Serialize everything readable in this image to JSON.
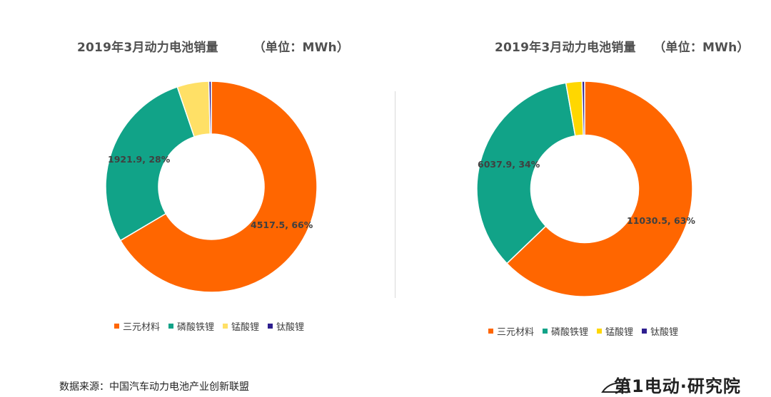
{
  "chart_data": [
    {
      "type": "pie",
      "title": "2019年3月动力电池销量        （单位：MWh）",
      "donut": true,
      "categories": [
        "三元材料",
        "磷酸铁锂",
        "锰酸锂",
        "钛酸锂"
      ],
      "values": [
        4517.5,
        1921.9,
        330,
        25
      ],
      "data_labels": [
        "4517.5, 66%",
        "1921.9, 28%",
        "",
        ""
      ],
      "colors": [
        "#FF6600",
        "#11A388",
        "#FFE066",
        "#2E1F8F"
      ],
      "legend_position": "bottom"
    },
    {
      "type": "pie",
      "title": "2019年3月动力电池销量    （单位：MWh）",
      "donut": true,
      "categories": [
        "三元材料",
        "磷酸铁锂",
        "锰酸锂",
        "钛酸锂"
      ],
      "values": [
        11030.5,
        6037.9,
        420,
        70
      ],
      "data_labels": [
        "11030.5, 63%",
        "6037.9, 34%",
        "",
        ""
      ],
      "colors": [
        "#FF6600",
        "#11A388",
        "#FFD700",
        "#2E1F8F"
      ],
      "legend_position": "bottom"
    }
  ],
  "source": "数据来源：中国汽车动力电池产业创新联盟",
  "logo": "第1电动·研究院"
}
